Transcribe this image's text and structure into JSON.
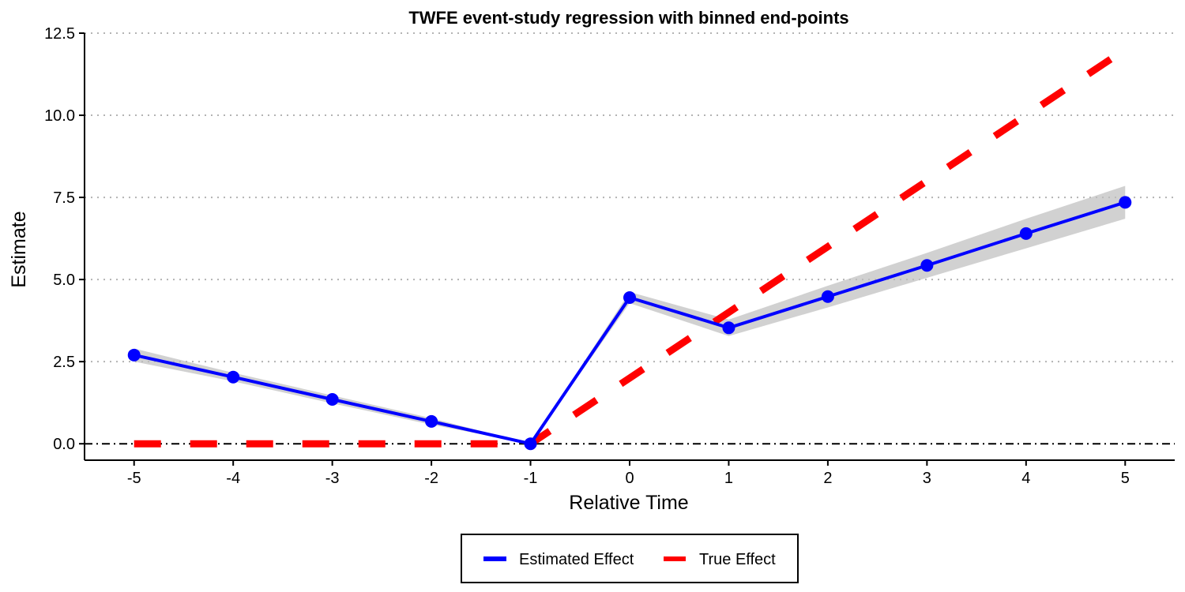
{
  "chart_data": {
    "type": "line",
    "title": "TWFE event-study regression with binned end-points",
    "xlabel": "Relative Time",
    "ylabel": "Estimate",
    "x": [
      -5,
      -4,
      -3,
      -2,
      -1,
      0,
      1,
      2,
      3,
      4,
      5
    ],
    "xlim": [
      -5.5,
      5.5
    ],
    "ylim": [
      -0.5,
      12.5
    ],
    "y_ticks": [
      0.0,
      2.5,
      5.0,
      7.5,
      10.0,
      12.5
    ],
    "y_tick_labels": [
      "0.0",
      "2.5",
      "5.0",
      "7.5",
      "10.0",
      "12.5"
    ],
    "x_tick_labels": [
      "-5",
      "-4",
      "-3",
      "-2",
      "-1",
      "0",
      "1",
      "2",
      "3",
      "4",
      "5"
    ],
    "grid": "horizontal dotted",
    "reference_line": {
      "y": 0,
      "style": "dashed",
      "color": "#000000"
    },
    "legend_position": "bottom",
    "series": [
      {
        "name": "Estimated Effect",
        "color": "#0000ff",
        "style": "solid",
        "markers": true,
        "values": [
          2.7,
          2.03,
          1.35,
          0.68,
          0.0,
          4.45,
          3.53,
          4.48,
          5.43,
          6.4,
          7.35
        ],
        "ci_lower": [
          2.5,
          1.9,
          1.23,
          0.58,
          0.0,
          4.28,
          3.28,
          4.15,
          5.05,
          5.95,
          6.85
        ],
        "ci_upper": [
          2.9,
          2.16,
          1.47,
          0.78,
          0.0,
          4.62,
          3.78,
          4.81,
          5.81,
          6.85,
          7.85
        ],
        "ci_color": "#bdbdbd"
      },
      {
        "name": "True Effect",
        "color": "#ff0000",
        "style": "dashed",
        "markers": false,
        "values": [
          0,
          0,
          0,
          0,
          0,
          2,
          4,
          6,
          8,
          10,
          12
        ]
      }
    ]
  }
}
